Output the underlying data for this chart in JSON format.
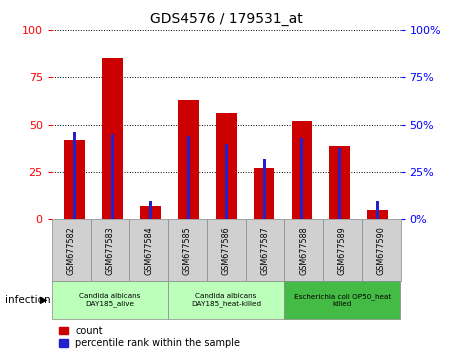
{
  "title": "GDS4576 / 179531_at",
  "samples": [
    "GSM677582",
    "GSM677583",
    "GSM677584",
    "GSM677585",
    "GSM677586",
    "GSM677587",
    "GSM677588",
    "GSM677589",
    "GSM677590"
  ],
  "count_values": [
    42,
    85,
    7,
    63,
    56,
    27,
    52,
    39,
    5
  ],
  "percentile_values": [
    46,
    45,
    10,
    44,
    40,
    32,
    43,
    38,
    10
  ],
  "bar_color_red": "#cc0000",
  "bar_color_blue": "#2222cc",
  "ylim": [
    0,
    100
  ],
  "yticks": [
    0,
    25,
    50,
    75,
    100
  ],
  "groups": [
    {
      "label": "Candida albicans\nDAY185_alive",
      "start": 0,
      "end": 3,
      "color": "#bbffbb"
    },
    {
      "label": "Candida albicans\nDAY185_heat-killed",
      "start": 3,
      "end": 6,
      "color": "#bbffbb"
    },
    {
      "label": "Escherichia coli OP50_heat\nkilled",
      "start": 6,
      "end": 9,
      "color": "#44bb44"
    }
  ],
  "infection_label": "infection",
  "legend_count_label": "count",
  "legend_percentile_label": "percentile rank within the sample",
  "plot_bg": "#ffffff",
  "sample_box_color": "#d0d0d0",
  "red_bar_width": 0.55,
  "blue_bar_width": 0.08
}
